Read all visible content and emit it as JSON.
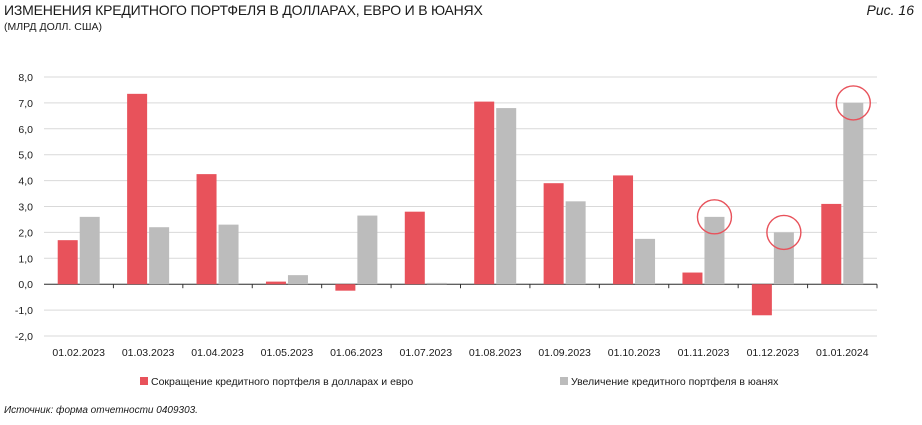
{
  "title": "ИЗМЕНЕНИЯ КРЕДИТНОГО ПОРТФЕЛЯ В ДОЛЛАРАХ, ЕВРО И В ЮАНЯХ",
  "subtitle": "(МЛРД ДОЛЛ. США)",
  "figure_label": "Рис. 16",
  "source": "Источник: форма отчетности 0409303.",
  "chart_data": {
    "type": "bar",
    "categories": [
      "01.02.2023",
      "01.03.2023",
      "01.04.2023",
      "01.05.2023",
      "01.06.2023",
      "01.07.2023",
      "01.08.2023",
      "01.09.2023",
      "01.10.2023",
      "01.11.2023",
      "01.12.2023",
      "01.01.2024"
    ],
    "series": [
      {
        "name": "Сокращение кредитного портфеля в долларах и евро",
        "color": "#e8525b",
        "values": [
          1.7,
          7.35,
          4.25,
          0.1,
          -0.25,
          2.8,
          7.05,
          3.9,
          4.2,
          0.45,
          -1.2,
          3.1
        ]
      },
      {
        "name": "Увеличение кредитного портфеля в юанях",
        "color": "#bcbcbc",
        "values": [
          2.6,
          2.2,
          2.3,
          0.35,
          2.65,
          0.05,
          6.8,
          3.2,
          1.75,
          2.6,
          2.0,
          7.0
        ]
      }
    ],
    "ylim": [
      -2,
      8
    ],
    "yticks": [
      "-2,0",
      "-1,0",
      "0,0",
      "1,0",
      "2,0",
      "3,0",
      "4,0",
      "5,0",
      "6,0",
      "7,0",
      "8,0"
    ],
    "grid": true,
    "legend_position": "bottom",
    "highlight_color": "#e8525b",
    "highlighted": [
      {
        "series": 1,
        "category": 9
      },
      {
        "series": 1,
        "category": 10
      },
      {
        "series": 1,
        "category": 11
      }
    ]
  }
}
